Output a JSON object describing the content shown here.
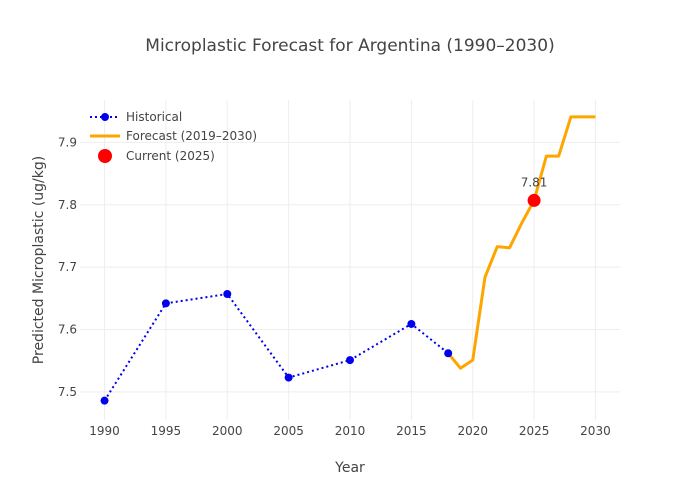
{
  "chart_data": {
    "type": "line",
    "title": "Microplastic Forecast for Argentina (1990–2030)",
    "xlabel": "Year",
    "ylabel": "Predicted Microplastic (ug/kg)",
    "xlim": [
      1988,
      2032
    ],
    "ylim": [
      7.455,
      7.968
    ],
    "x_ticks": [
      1990,
      1995,
      2000,
      2005,
      2010,
      2015,
      2020,
      2025,
      2030
    ],
    "y_ticks": [
      7.5,
      7.6,
      7.7,
      7.8,
      7.9
    ],
    "y_tick_labels": [
      "7.5",
      "7.6",
      "7.7",
      "7.8",
      "7.9"
    ],
    "grid": true,
    "legend_position": "top-left",
    "series": [
      {
        "name": "Historical",
        "style": "dotted-line-markers",
        "color": "#0000ee",
        "x": [
          1990,
          1995,
          2000,
          2005,
          2010,
          2015,
          2018
        ],
        "y": [
          7.486,
          7.642,
          7.657,
          7.523,
          7.551,
          7.609,
          7.562
        ]
      },
      {
        "name": "Forecast (2019–2030)",
        "style": "solid-line",
        "color": "#ffa500",
        "x": [
          2018,
          2019,
          2020,
          2021,
          2022,
          2023,
          2024,
          2025,
          2026,
          2027,
          2028,
          2029,
          2030
        ],
        "y": [
          7.562,
          7.538,
          7.551,
          7.684,
          7.733,
          7.731,
          7.771,
          7.807,
          7.878,
          7.878,
          7.941,
          7.941,
          7.941
        ]
      },
      {
        "name": "Current (2025)",
        "style": "marker",
        "color": "#ff0000",
        "x": [
          2025
        ],
        "y": [
          7.807
        ],
        "label": "7.81"
      }
    ]
  }
}
